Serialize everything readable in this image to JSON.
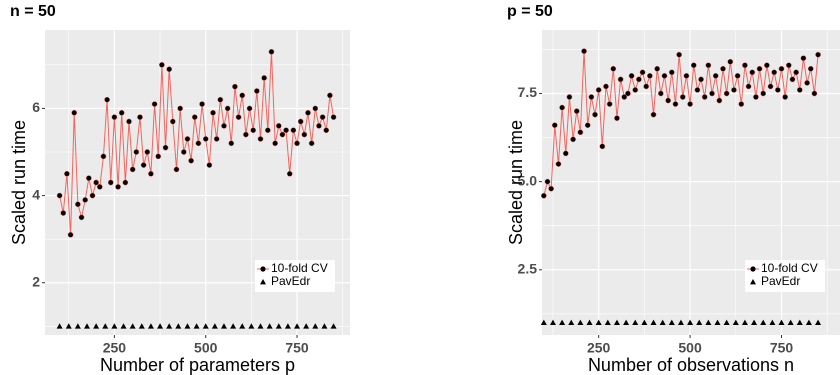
{
  "chart_data": [
    {
      "type": "line",
      "title": "n = 50",
      "xlabel": "Number of parameters p",
      "ylabel": "Scaled run time",
      "xlim": [
        60,
        895
      ],
      "ylim": [
        0.8,
        7.8
      ],
      "xticks": [
        250,
        500,
        750
      ],
      "yticks": [
        2,
        4,
        6
      ],
      "grid": true,
      "legend": "lower right",
      "series": [
        {
          "name": "10-fold CV",
          "color": "#f4645d",
          "marker": "circle",
          "x": [
            100,
            110,
            120,
            130,
            140,
            150,
            160,
            170,
            180,
            190,
            200,
            210,
            220,
            230,
            240,
            250,
            260,
            270,
            280,
            290,
            300,
            310,
            320,
            330,
            340,
            350,
            360,
            370,
            380,
            390,
            400,
            410,
            420,
            430,
            440,
            450,
            460,
            470,
            480,
            490,
            500,
            510,
            520,
            530,
            540,
            550,
            560,
            570,
            580,
            590,
            600,
            610,
            620,
            630,
            640,
            650,
            660,
            670,
            680,
            690,
            700,
            710,
            720,
            730,
            740,
            750,
            760,
            770,
            780,
            790,
            800,
            810,
            820,
            830,
            840,
            850
          ],
          "values": [
            4.0,
            3.6,
            4.5,
            3.1,
            5.9,
            3.8,
            3.5,
            3.9,
            4.4,
            4.0,
            4.3,
            4.2,
            4.9,
            6.2,
            4.3,
            5.8,
            4.2,
            5.9,
            4.3,
            5.7,
            4.6,
            5.0,
            5.8,
            4.7,
            5.0,
            4.5,
            6.1,
            4.9,
            7.0,
            5.1,
            6.9,
            5.7,
            4.6,
            6.0,
            5.0,
            5.3,
            4.8,
            5.8,
            5.2,
            6.1,
            5.3,
            4.7,
            5.9,
            5.3,
            6.2,
            5.6,
            6.0,
            5.2,
            6.5,
            5.8,
            6.3,
            5.4,
            6.0,
            5.5,
            6.4,
            5.3,
            6.7,
            5.5,
            7.3,
            5.2,
            5.6,
            5.4,
            5.5,
            4.5,
            5.5,
            5.2,
            5.7,
            5.4,
            5.9,
            5.2,
            6.0,
            5.6,
            5.8,
            5.5,
            6.3,
            5.8
          ]
        },
        {
          "name": "PavEdr",
          "color": "#000000",
          "marker": "triangle",
          "x": [
            100,
            125,
            150,
            175,
            200,
            225,
            250,
            275,
            300,
            325,
            350,
            375,
            400,
            425,
            450,
            475,
            500,
            525,
            550,
            575,
            600,
            625,
            650,
            675,
            700,
            725,
            750,
            775,
            800,
            825,
            850
          ],
          "values": [
            1,
            1,
            1,
            1,
            1,
            1,
            1,
            1,
            1,
            1,
            1,
            1,
            1,
            1,
            1,
            1,
            1,
            1,
            1,
            1,
            1,
            1,
            1,
            1,
            1,
            1,
            1,
            1,
            1,
            1,
            1
          ]
        }
      ]
    },
    {
      "type": "line",
      "title": "p = 50",
      "xlabel": "Number of observations n",
      "ylabel": "Scaled run time",
      "xlim": [
        95,
        910
      ],
      "ylim": [
        0.65,
        9.3
      ],
      "xticks": [
        250,
        500,
        750
      ],
      "yticks": [
        2.5,
        {
          "value": 5,
          "label": "5.0"
        },
        7.5
      ],
      "grid": true,
      "legend": "lower right",
      "series": [
        {
          "name": "10-fold CV",
          "color": "#f4645d",
          "marker": "circle",
          "x": [
            100,
            110,
            120,
            130,
            140,
            150,
            160,
            170,
            180,
            190,
            200,
            210,
            220,
            230,
            240,
            250,
            260,
            270,
            280,
            290,
            300,
            310,
            320,
            330,
            340,
            350,
            360,
            370,
            380,
            390,
            400,
            410,
            420,
            430,
            440,
            450,
            460,
            470,
            480,
            490,
            500,
            510,
            520,
            530,
            540,
            550,
            560,
            570,
            580,
            590,
            600,
            610,
            620,
            630,
            640,
            650,
            660,
            670,
            680,
            690,
            700,
            710,
            720,
            730,
            740,
            750,
            760,
            770,
            780,
            790,
            800,
            810,
            820,
            830,
            840,
            850
          ],
          "values": [
            4.6,
            5.0,
            4.8,
            6.6,
            5.5,
            7.1,
            5.8,
            7.4,
            6.2,
            7.0,
            6.4,
            8.7,
            6.6,
            7.4,
            6.9,
            7.6,
            6.0,
            7.7,
            7.2,
            8.2,
            6.8,
            7.9,
            7.4,
            7.5,
            8.0,
            7.6,
            7.9,
            8.1,
            7.7,
            8.0,
            6.9,
            8.2,
            7.5,
            8.0,
            7.3,
            8.1,
            7.2,
            8.6,
            7.4,
            8.0,
            7.2,
            8.3,
            7.6,
            7.9,
            7.4,
            8.3,
            7.5,
            8.0,
            7.3,
            8.2,
            7.5,
            8.4,
            7.6,
            8.0,
            7.2,
            8.3,
            7.7,
            8.1,
            7.4,
            8.2,
            7.5,
            8.3,
            7.7,
            8.1,
            7.6,
            8.2,
            7.4,
            8.3,
            7.9,
            8.1,
            7.6,
            8.5,
            7.8,
            8.2,
            7.5,
            8.6
          ]
        },
        {
          "name": "PavEdr",
          "color": "#000000",
          "marker": "triangle",
          "x": [
            100,
            125,
            150,
            175,
            200,
            225,
            250,
            275,
            300,
            325,
            350,
            375,
            400,
            425,
            450,
            475,
            500,
            525,
            550,
            575,
            600,
            625,
            650,
            675,
            700,
            725,
            750,
            775,
            800,
            825,
            850
          ],
          "values": [
            1,
            1,
            1,
            1,
            1,
            1,
            1,
            1,
            1,
            1,
            1,
            1,
            1,
            1,
            1,
            1,
            1,
            1,
            1,
            1,
            1,
            1,
            1,
            1,
            1,
            1,
            1,
            1,
            1,
            1,
            1
          ]
        }
      ]
    }
  ]
}
